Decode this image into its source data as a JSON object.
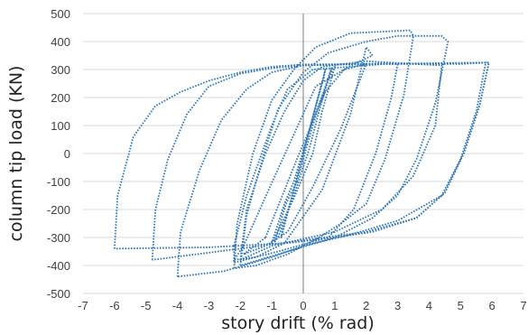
{
  "chart_data": {
    "type": "scatter",
    "xlabel": "story drift (% rad)",
    "ylabel": "column tip load (KN)",
    "xlim": [
      -7,
      7
    ],
    "ylim": [
      -500,
      500
    ],
    "x_ticks": [
      -7,
      -6,
      -5,
      -4,
      -3,
      -2,
      -1,
      0,
      1,
      2,
      3,
      4,
      5,
      6,
      7
    ],
    "y_ticks": [
      -500,
      -400,
      -300,
      -200,
      -100,
      0,
      100,
      200,
      300,
      400,
      500
    ],
    "grid": "horizontal",
    "legend": "none",
    "marker": "dotted",
    "series": [
      {
        "color": "#2e75b6",
        "loops": [
          [
            [
              0,
              0
            ],
            [
              0.35,
              150
            ],
            [
              0.65,
              270
            ],
            [
              0.7,
              300
            ],
            [
              0.35,
              150
            ],
            [
              0,
              0
            ],
            [
              -0.35,
              -150
            ],
            [
              -0.65,
              -270
            ],
            [
              -0.7,
              -300
            ],
            [
              -0.35,
              -150
            ],
            [
              0,
              0
            ]
          ],
          [
            [
              -0.2,
              -100
            ],
            [
              0.3,
              100
            ],
            [
              0.85,
              290
            ],
            [
              0.9,
              305
            ],
            [
              0.5,
              150
            ],
            [
              0.2,
              20
            ],
            [
              -0.3,
              -150
            ],
            [
              -0.8,
              -300
            ],
            [
              -0.9,
              -315
            ],
            [
              -0.55,
              -180
            ],
            [
              -0.2,
              -100
            ]
          ],
          [
            [
              -0.3,
              -100
            ],
            [
              0.3,
              120
            ],
            [
              0.9,
              290
            ],
            [
              1.0,
              310
            ],
            [
              0.6,
              150
            ],
            [
              0.3,
              0
            ],
            [
              -0.3,
              -160
            ],
            [
              -0.9,
              -300
            ],
            [
              -1.0,
              -320
            ],
            [
              -0.6,
              -180
            ],
            [
              -0.3,
              -100
            ]
          ],
          [
            [
              -1.2,
              -300
            ],
            [
              -0.2,
              -20
            ],
            [
              0.7,
              220
            ],
            [
              1.3,
              300
            ],
            [
              2.0,
              320
            ],
            [
              1.2,
              90
            ],
            [
              0.3,
              -120
            ],
            [
              -0.5,
              -280
            ],
            [
              -1.2,
              -330
            ],
            [
              -1.9,
              -360
            ],
            [
              -1.2,
              -300
            ]
          ],
          [
            [
              -1.9,
              -330
            ],
            [
              -0.9,
              -80
            ],
            [
              0.4,
              240
            ],
            [
              1.6,
              320
            ],
            [
              2.2,
              350
            ],
            [
              2.0,
              380
            ],
            [
              1.5,
              140
            ],
            [
              0.6,
              -130
            ],
            [
              -0.6,
              -320
            ],
            [
              -1.5,
              -370
            ],
            [
              -2.2,
              -380
            ],
            [
              -1.9,
              -330
            ]
          ],
          [
            [
              -2.2,
              -330
            ],
            [
              -1.8,
              -150
            ],
            [
              -1.0,
              100
            ],
            [
              -0.5,
              230
            ],
            [
              0.3,
              300
            ],
            [
              1.5,
              310
            ],
            [
              2.6,
              320
            ],
            [
              3.0,
              320
            ],
            [
              2.8,
              200
            ],
            [
              2.3,
              0
            ],
            [
              1.6,
              -200
            ],
            [
              0.8,
              -300
            ],
            [
              -0.8,
              -350
            ],
            [
              -2.2,
              -390
            ],
            [
              -2.2,
              -330
            ]
          ],
          [
            [
              -2.2,
              -410
            ],
            [
              -2.1,
              -250
            ],
            [
              -1.6,
              0
            ],
            [
              -1.0,
              190
            ],
            [
              -0.3,
              300
            ],
            [
              0.4,
              380
            ],
            [
              1.5,
              430
            ],
            [
              3.4,
              440
            ],
            [
              3.5,
              420
            ],
            [
              3.2,
              210
            ],
            [
              2.6,
              -20
            ],
            [
              2.0,
              -180
            ],
            [
              1.2,
              -250
            ],
            [
              0.5,
              -300
            ],
            [
              -0.5,
              -360
            ],
            [
              -1.5,
              -400
            ],
            [
              -2.2,
              -410
            ]
          ],
          [
            [
              -2.0,
              -380
            ],
            [
              -1.8,
              -200
            ],
            [
              -1.2,
              0
            ],
            [
              -0.6,
              150
            ],
            [
              0.0,
              260
            ],
            [
              0.6,
              310
            ],
            [
              2.0,
              330
            ],
            [
              3.5,
              320
            ],
            [
              4.4,
              315
            ],
            [
              4.2,
              100
            ],
            [
              3.5,
              -80
            ],
            [
              2.5,
              -200
            ],
            [
              1.0,
              -280
            ],
            [
              -1.0,
              -330
            ],
            [
              -2.0,
              -380
            ]
          ],
          [
            [
              -2.0,
              -400
            ],
            [
              -1.8,
              -220
            ],
            [
              -1.3,
              -20
            ],
            [
              -0.8,
              160
            ],
            [
              0.0,
              290
            ],
            [
              0.8,
              360
            ],
            [
              2.0,
              400
            ],
            [
              3.0,
              420
            ],
            [
              4.4,
              420
            ],
            [
              4.6,
              400
            ],
            [
              4.2,
              180
            ],
            [
              3.6,
              -20
            ],
            [
              3.0,
              -150
            ],
            [
              2.2,
              -230
            ],
            [
              1.0,
              -300
            ],
            [
              -0.5,
              -350
            ],
            [
              -2.0,
              -400
            ]
          ],
          [
            [
              -4.0,
              -440
            ],
            [
              -3.9,
              -280
            ],
            [
              -3.3,
              -60
            ],
            [
              -2.6,
              120
            ],
            [
              -1.8,
              230
            ],
            [
              -1.0,
              290
            ],
            [
              0.0,
              315
            ],
            [
              2.0,
              320
            ],
            [
              4.0,
              320
            ],
            [
              5.0,
              320
            ],
            [
              5.8,
              325
            ],
            [
              5.5,
              150
            ],
            [
              5.0,
              -20
            ],
            [
              4.4,
              -150
            ],
            [
              3.0,
              -240
            ],
            [
              1.5,
              -290
            ],
            [
              0.0,
              -330
            ],
            [
              -1.0,
              -370
            ],
            [
              -2.5,
              -420
            ],
            [
              -4.0,
              -440
            ]
          ],
          [
            [
              -4.8,
              -380
            ],
            [
              -4.7,
              -200
            ],
            [
              -4.3,
              -20
            ],
            [
              -3.7,
              140
            ],
            [
              -3.0,
              240
            ],
            [
              -2.0,
              285
            ],
            [
              -1.0,
              305
            ],
            [
              0.0,
              315
            ],
            [
              2.0,
              320
            ],
            [
              4.0,
              322
            ],
            [
              5.9,
              325
            ],
            [
              5.6,
              170
            ],
            [
              5.1,
              0
            ],
            [
              4.5,
              -140
            ],
            [
              3.6,
              -230
            ],
            [
              2.0,
              -280
            ],
            [
              0.0,
              -310
            ],
            [
              -2.0,
              -340
            ],
            [
              -4.8,
              -380
            ]
          ],
          [
            [
              -6.0,
              -340
            ],
            [
              -5.9,
              -150
            ],
            [
              -5.4,
              60
            ],
            [
              -4.7,
              170
            ],
            [
              -3.9,
              220
            ],
            [
              -3.0,
              260
            ],
            [
              -2.0,
              290
            ],
            [
              -1.0,
              310
            ],
            [
              0.0,
              318
            ],
            [
              2.0,
              320
            ],
            [
              4.0,
              322
            ],
            [
              5.9,
              325
            ],
            [
              5.6,
              170
            ],
            [
              5.1,
              0
            ],
            [
              4.5,
              -140
            ],
            [
              3.6,
              -230
            ],
            [
              2.2,
              -280
            ],
            [
              1.0,
              -300
            ],
            [
              -0.5,
              -320
            ],
            [
              -3.0,
              -335
            ],
            [
              -6.0,
              -340
            ]
          ]
        ]
      }
    ]
  }
}
